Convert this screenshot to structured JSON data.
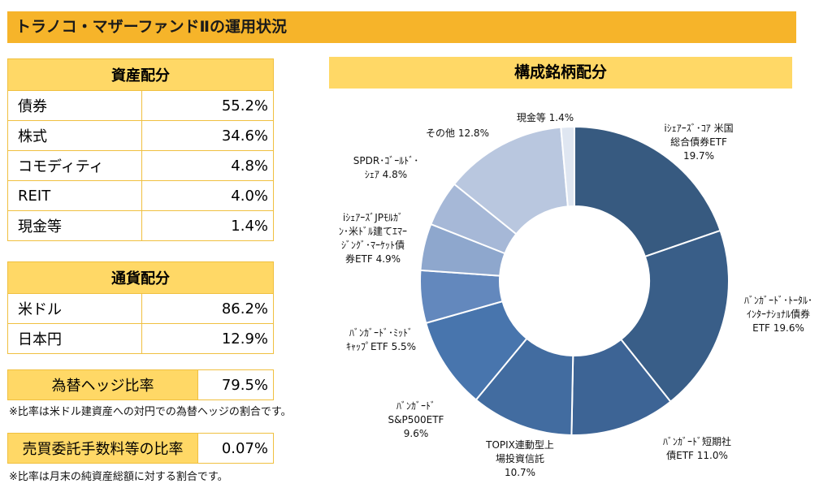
{
  "title": "トラノコ・マザーファンドⅡの運用状況",
  "asset_allocation": {
    "header": "資産配分",
    "rows": [
      {
        "label": "債券",
        "value": "55.2%"
      },
      {
        "label": "株式",
        "value": "34.6%"
      },
      {
        "label": "コモディティ",
        "value": "4.8%"
      },
      {
        "label": "REIT",
        "value": "4.0%"
      },
      {
        "label": "現金等",
        "value": "1.4%"
      }
    ]
  },
  "currency_allocation": {
    "header": "通貨配分",
    "rows": [
      {
        "label": "米ドル",
        "value": "86.2%"
      },
      {
        "label": "日本円",
        "value": "12.9%"
      }
    ]
  },
  "hedge": {
    "label": "為替ヘッジ比率",
    "value": "79.5%",
    "note": "※比率は米ドル建資産への対円での為替ヘッジの割合です。"
  },
  "fee": {
    "label": "売買委託手数料等の比率",
    "value": "0.07%",
    "note": "※比率は月末の純資産総額に対する割合です。"
  },
  "chart_data": {
    "type": "pie",
    "title": "構成銘柄配分",
    "donut": true,
    "slices": [
      {
        "name": "iｼｪｱｰｽﾞ･ｺｱ 米国総合債券ETF",
        "value": 19.7,
        "label_lines": [
          "iｼｪｱｰｽﾞ･ｺｱ 米国",
          "総合債券ETF",
          "19.7%"
        ],
        "color": "#375a80"
      },
      {
        "name": "ﾊﾞﾝｶﾞｰﾄﾞ･ﾄｰﾀﾙ･ｲﾝﾀｰﾅｼｮﾅﾙ債券ETF",
        "value": 19.6,
        "label_lines": [
          "ﾊﾞﾝｶﾞｰﾄﾞ･ﾄｰﾀﾙ･",
          "ｲﾝﾀｰﾅｼｮﾅﾙ債券",
          "ETF 19.6%"
        ],
        "color": "#395e88"
      },
      {
        "name": "ﾊﾞﾝｶﾞｰﾄﾞ短期社債ETF",
        "value": 11.0,
        "label_lines": [
          "ﾊﾞﾝｶﾞｰﾄﾞ短期社",
          "債ETF 11.0%"
        ],
        "color": "#3d6495"
      },
      {
        "name": "TOPIX連動型上場投資信託",
        "value": 10.7,
        "label_lines": [
          "TOPIX連動型上",
          "場投資信託",
          "10.7%"
        ],
        "color": "#426ca0"
      },
      {
        "name": "ﾊﾞﾝｶﾞｰﾄﾞS&P500ETF",
        "value": 9.6,
        "label_lines": [
          "ﾊﾞﾝｶﾞｰﾄﾞ",
          "S&P500ETF",
          "9.6%"
        ],
        "color": "#4875ad"
      },
      {
        "name": "ﾊﾞﾝｶﾞｰﾄﾞ･ﾐｯﾄﾞｷｬｯﾌﾟETF",
        "value": 5.5,
        "label_lines": [
          "ﾊﾞﾝｶﾞｰﾄﾞ･ﾐｯﾄﾞ",
          "ｷｬｯﾌﾟETF 5.5%"
        ],
        "color": "#6388bd"
      },
      {
        "name": "iｼｪｱｰｽﾞJPﾓﾙｶﾞﾝ･米ﾄﾞﾙ建てｴﾏｰｼﾞﾝｸﾞ･ﾏｰｹｯﾄ債券ETF",
        "value": 4.9,
        "label_lines": [
          "iｼｪｱｰｽﾞJPﾓﾙｶﾞ",
          "ﾝ･米ﾄﾞﾙ建てｴﾏｰ",
          "ｼﾞﾝｸﾞ･ﾏｰｹｯﾄ債",
          "券ETF 4.9%"
        ],
        "color": "#8ea7cd"
      },
      {
        "name": "SPDR･ｺﾞｰﾙﾄﾞ･ｼｪｱ",
        "value": 4.8,
        "label_lines": [
          "SPDR･ｺﾞｰﾙﾄﾞ･",
          "ｼｪｱ 4.8%"
        ],
        "color": "#a6b8d7"
      },
      {
        "name": "その他",
        "value": 12.8,
        "label_lines": [
          "その他 12.8%"
        ],
        "color": "#b9c7df"
      },
      {
        "name": "現金等",
        "value": 1.4,
        "label_lines": [
          "現金等 1.4%"
        ],
        "color": "#dfe6f1"
      }
    ]
  }
}
